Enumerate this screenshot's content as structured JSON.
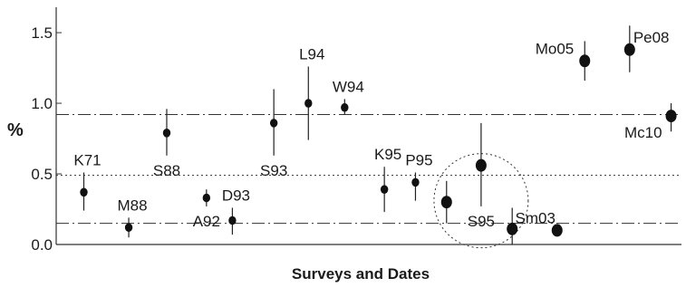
{
  "chart_data": {
    "type": "scatter",
    "title": "",
    "xlabel": "Surveys and Dates",
    "ylabel": "%",
    "ylim": [
      0.0,
      1.68
    ],
    "yticks": [
      0.0,
      0.5,
      1.0,
      1.5
    ],
    "ytick_labels": [
      "0.0",
      "0.5",
      "1.0",
      "1.5"
    ],
    "grid": false,
    "reference_lines": [
      {
        "value": 0.92,
        "style": "dash-dot"
      },
      {
        "value": 0.49,
        "style": "dotted"
      },
      {
        "value": 0.15,
        "style": "dash-dot"
      }
    ],
    "highlight_circle": {
      "center_x": 12.5,
      "center_y": 0.31,
      "style": "dotted"
    },
    "points": [
      {
        "label": "K71",
        "x": 1,
        "y": 0.37,
        "err_low": 0.24,
        "err_high": 0.51,
        "label_pos": "above"
      },
      {
        "label": "M88",
        "x": 2.3,
        "y": 0.12,
        "err_low": 0.05,
        "err_high": 0.19,
        "label_pos": "above"
      },
      {
        "label": "S88",
        "x": 3.4,
        "y": 0.79,
        "err_low": 0.63,
        "err_high": 0.96,
        "label_pos": "below"
      },
      {
        "label": "A92",
        "x": 4.55,
        "y": 0.33,
        "err_low": 0.27,
        "err_high": 0.39,
        "label_pos": "below"
      },
      {
        "label": "D93",
        "x": 5.3,
        "y": 0.17,
        "err_low": 0.07,
        "err_high": 0.26,
        "label_pos": "above"
      },
      {
        "label": "S93",
        "x": 6.5,
        "y": 0.86,
        "err_low": 0.63,
        "err_high": 1.1,
        "label_pos": "below"
      },
      {
        "label": "L94",
        "x": 7.5,
        "y": 1.0,
        "err_low": 0.74,
        "err_high": 1.26,
        "label_pos": "above"
      },
      {
        "label": "W94",
        "x": 8.55,
        "y": 0.97,
        "err_low": 0.92,
        "err_high": 1.03,
        "label_pos": "above"
      },
      {
        "label": "K95",
        "x": 9.7,
        "y": 0.39,
        "err_low": 0.23,
        "err_high": 0.55,
        "label_pos": "above"
      },
      {
        "label": "P95",
        "x": 10.6,
        "y": 0.44,
        "err_low": 0.31,
        "err_high": 0.51,
        "label_pos": "above"
      },
      {
        "label": "",
        "x": 11.5,
        "y": 0.3,
        "err_low": 0.15,
        "err_high": 0.45,
        "label_pos": "none"
      },
      {
        "label": "S95",
        "x": 12.5,
        "y": 0.56,
        "err_low": 0.27,
        "err_high": 0.86,
        "label_pos": "below"
      },
      {
        "label": "",
        "x": 13.4,
        "y": 0.11,
        "err_low": 0.0,
        "err_high": 0.26,
        "label_pos": "none"
      },
      {
        "label": "Sm03",
        "x": 14.7,
        "y": 0.1,
        "err_low": 0.1,
        "err_high": 0.1,
        "label_pos": "above-left"
      },
      {
        "label": "Mo05",
        "x": 15.5,
        "y": 1.3,
        "err_low": 1.16,
        "err_high": 1.44,
        "label_pos": "left"
      },
      {
        "label": "Pe08",
        "x": 16.8,
        "y": 1.38,
        "err_low": 1.22,
        "err_high": 1.55,
        "label_pos": "right"
      },
      {
        "label": "Mc10",
        "x": 18.0,
        "y": 0.91,
        "err_low": 0.8,
        "err_high": 1.0,
        "label_pos": "left-below"
      }
    ]
  }
}
